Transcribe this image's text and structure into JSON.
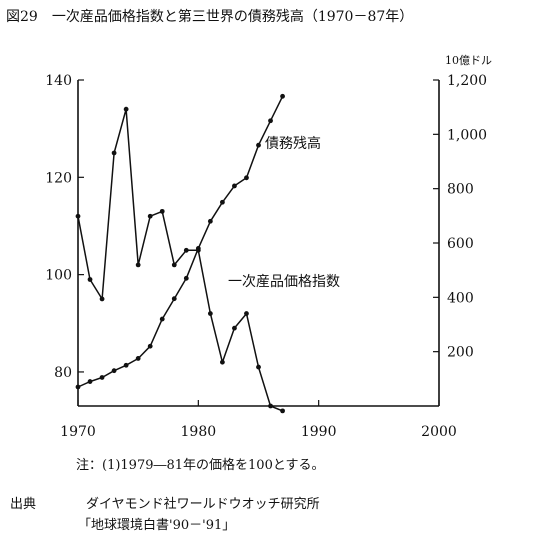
{
  "chart_data": {
    "type": "line",
    "title": "図29　一次産品価格指数と第三世界の債務残高（1970－87年）",
    "x_ticks": [
      1970,
      1980,
      1990,
      2000
    ],
    "xlim": [
      1970,
      2000
    ],
    "y_left_ticks": [
      80,
      100,
      120,
      140
    ],
    "y_left_lim": [
      73,
      140
    ],
    "y_right_unit": "10億ドル",
    "y_right_ticks": [
      "200",
      "400",
      "600",
      "800",
      "1,000",
      "1,200"
    ],
    "y_right_values": [
      200,
      400,
      600,
      800,
      1000,
      1200
    ],
    "y_right_lim": [
      0,
      1200
    ],
    "series": [
      {
        "name": "一次産品価格指数",
        "axis": "left",
        "x": [
          1970,
          1971,
          1972,
          1973,
          1974,
          1975,
          1976,
          1977,
          1978,
          1979,
          1980,
          1981,
          1982,
          1983,
          1984,
          1985,
          1986,
          1987
        ],
        "y": [
          112,
          99,
          95,
          125,
          134,
          102,
          112,
          113,
          102,
          105,
          105,
          92,
          82,
          89,
          92,
          81,
          73,
          72
        ]
      },
      {
        "name": "債務残高",
        "axis": "right",
        "x": [
          1970,
          1971,
          1972,
          1973,
          1974,
          1975,
          1976,
          1977,
          1978,
          1979,
          1980,
          1981,
          1982,
          1983,
          1984,
          1985,
          1986,
          1987
        ],
        "y": [
          70,
          90,
          105,
          130,
          150,
          175,
          220,
          320,
          395,
          470,
          580,
          680,
          750,
          810,
          840,
          960,
          1050,
          1140
        ]
      }
    ]
  },
  "note": "注：(1)1979―81年の価格を100とする。",
  "source": {
    "label": "出典",
    "name": "ダイヤモンド社ワールドウオッチ研究所",
    "book": "「地球環境白書'90－'91」"
  }
}
